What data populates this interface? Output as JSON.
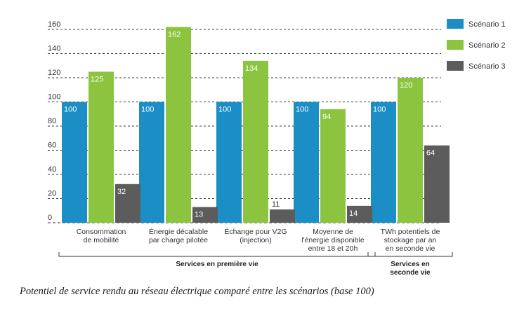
{
  "caption": "Potentiel de service rendu au réseau électrique comparé entre les scénarios (base 100)",
  "chart_data": {
    "type": "bar",
    "title": "",
    "xlabel": "",
    "ylabel": "",
    "ylim": [
      0,
      160
    ],
    "yticks": [
      0,
      20,
      40,
      60,
      80,
      100,
      120,
      140,
      160
    ],
    "grid": true,
    "legend_position": "top-right",
    "categories": [
      [
        "Consommation",
        "de mobilité"
      ],
      [
        "Énergie décalable",
        "par charge pilotée"
      ],
      [
        "Échange pour V2G",
        "(injection)"
      ],
      [
        "Moyenne de",
        "l'énergie disponible",
        "entre 18 et 20h"
      ],
      [
        "TWh potentiels de",
        "stockage par an",
        "en seconde vie"
      ]
    ],
    "series": [
      {
        "name": "Scénario 1",
        "color": "#1b8ec6",
        "values": [
          100,
          100,
          100,
          100,
          100
        ]
      },
      {
        "name": "Scénario 2",
        "color": "#8cc43f",
        "values": [
          125,
          162,
          134,
          94,
          120
        ]
      },
      {
        "name": "Scénario 3",
        "color": "#5c5c5c",
        "values": [
          32,
          13,
          11,
          14,
          64
        ]
      }
    ],
    "groups": [
      {
        "label": "Services en première vie",
        "lines": [
          "Services en première vie"
        ],
        "span": [
          0,
          3
        ]
      },
      {
        "label": "Services en seconde vie",
        "lines": [
          "Services en",
          "seconde vie"
        ],
        "span": [
          4,
          4
        ]
      }
    ]
  }
}
